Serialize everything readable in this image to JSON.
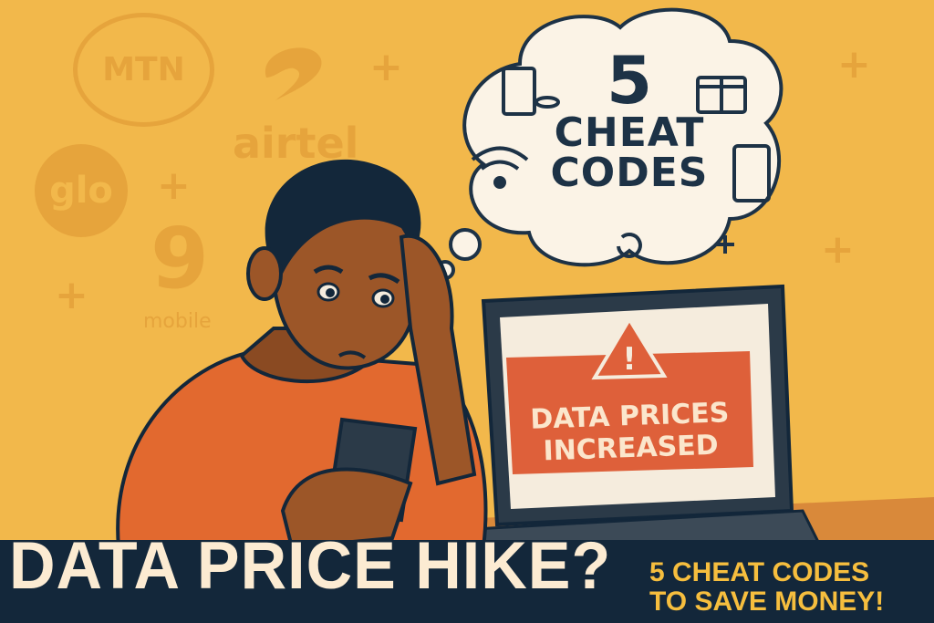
{
  "background_logos": {
    "mtn": "MTN",
    "airtel": "airtel",
    "glo": "glo",
    "nine": "9",
    "mobile": "mobile"
  },
  "thought_bubble": {
    "number": "5",
    "line1": "CHEAT",
    "line2": "CODES"
  },
  "laptop_screen": {
    "line1": "DATA PRICES",
    "line2": "INCREASED"
  },
  "banner": {
    "title": "DATA PRICE HIKE?",
    "subtitle_line1": "5 CHEAT CODES",
    "subtitle_line2": "TO SAVE MONEY!"
  },
  "colors": {
    "background": "#F2B84B",
    "banner": "#13273A",
    "title": "#FCEBD2",
    "subtitle": "#F6BE3E",
    "warning": "#DE603A",
    "navy": "#1D3246"
  }
}
